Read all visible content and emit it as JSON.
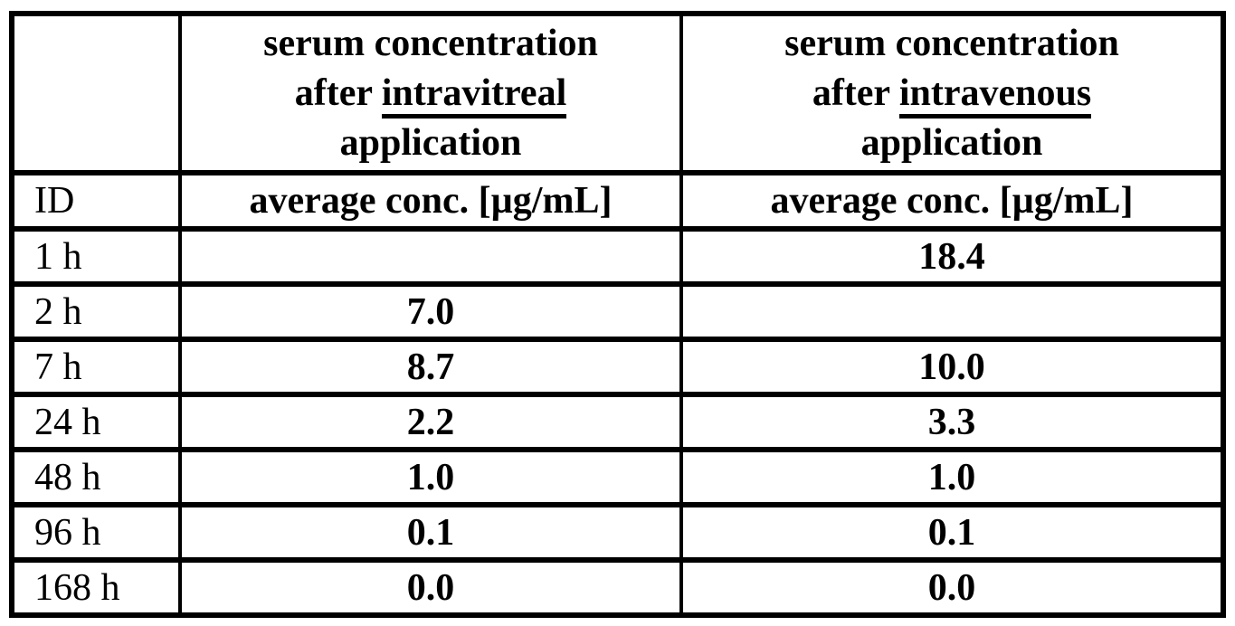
{
  "table": {
    "header": {
      "intravitreal": {
        "line1": "serum concentration",
        "after": "after",
        "route": "intravitreal",
        "line3": "application"
      },
      "intravenous": {
        "line1": "serum concentration",
        "after": "after",
        "route": "intravenous",
        "line3": "application"
      }
    },
    "subheader": {
      "id": "ID",
      "intravitreal_unit": "average conc. [µg/mL]",
      "intravenous_unit": "average conc. [µg/mL]"
    },
    "rows": [
      {
        "id": "1 h",
        "intravitreal": "",
        "intravenous": "18.4"
      },
      {
        "id": "2 h",
        "intravitreal": "7.0",
        "intravenous": ""
      },
      {
        "id": "7 h",
        "intravitreal": "8.7",
        "intravenous": "10.0"
      },
      {
        "id": "24 h",
        "intravitreal": "2.2",
        "intravenous": "3.3"
      },
      {
        "id": "48 h",
        "intravitreal": "1.0",
        "intravenous": "1.0"
      },
      {
        "id": "96 h",
        "intravitreal": "0.1",
        "intravenous": "0.1"
      },
      {
        "id": "168 h",
        "intravitreal": "0.0",
        "intravenous": "0.0"
      }
    ]
  },
  "colors": {
    "border": "#000000",
    "background": "#ffffff",
    "text": "#000000"
  }
}
